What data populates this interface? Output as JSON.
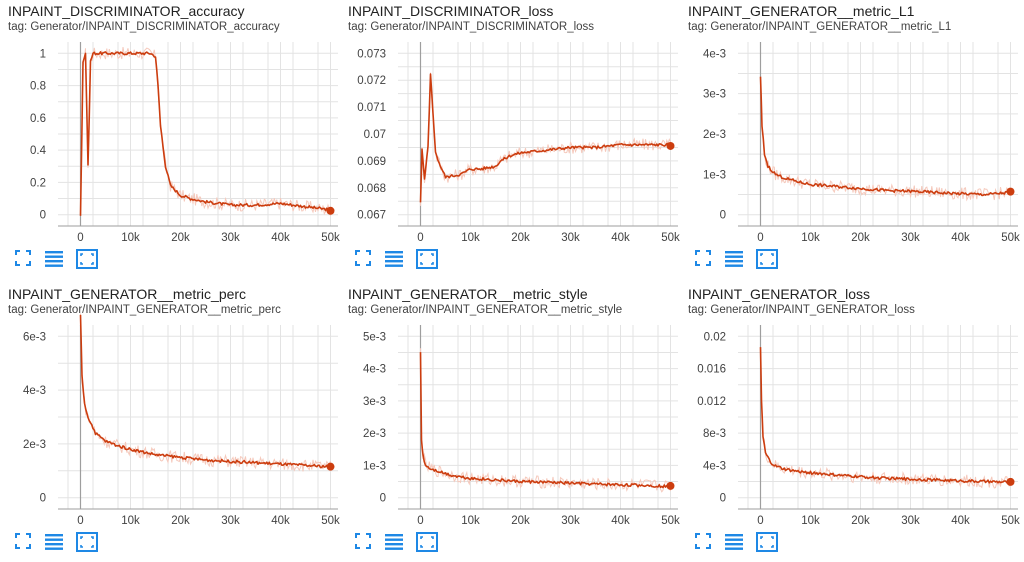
{
  "colors": {
    "line": "#cc3d0f",
    "raw": "#f5c9bc",
    "grid": "#e3e3e3",
    "axis": "#9e9e9e",
    "icon": "#1e88e5"
  },
  "cards": [
    {
      "title": "INPAINT_DISCRIMINATOR_accuracy",
      "tag": "tag: Generator/INPAINT_DISCRIMINATOR_accuracy"
    },
    {
      "title": "INPAINT_DISCRIMINATOR_loss",
      "tag": "tag: Generator/INPAINT_DISCRIMINATOR_loss"
    },
    {
      "title": "INPAINT_GENERATOR__metric_L1",
      "tag": "tag: Generator/INPAINT_GENERATOR__metric_L1"
    },
    {
      "title": "INPAINT_GENERATOR__metric_perc",
      "tag": "tag: Generator/INPAINT_GENERATOR__metric_perc"
    },
    {
      "title": "INPAINT_GENERATOR__metric_style",
      "tag": "tag: Generator/INPAINT_GENERATOR__metric_style"
    },
    {
      "title": "INPAINT_GENERATOR_loss",
      "tag": "tag: Generator/INPAINT_GENERATOR_loss"
    }
  ],
  "toolbar": {
    "icons": [
      "fit-to-data-icon",
      "toggle-log-scale-icon",
      "fit-domain-icon"
    ]
  },
  "chart_data": [
    {
      "type": "line",
      "title": "INPAINT_DISCRIMINATOR_accuracy",
      "x_ticks": [
        "0",
        "10k",
        "20k",
        "30k",
        "40k",
        "50k"
      ],
      "y_ticks": [
        "0",
        "0.2",
        "0.4",
        "0.6",
        "0.8",
        "1"
      ],
      "series": [
        {
          "x": [
            0,
            500,
            1000,
            1500,
            2000,
            2500,
            3000,
            4000,
            6000,
            8000,
            10000,
            12000,
            14000,
            15000,
            15500,
            16000,
            17000,
            18000,
            20000,
            22000,
            25000,
            30000,
            35000,
            40000,
            45000,
            50000
          ],
          "y": [
            0,
            0.95,
            1.0,
            0.3,
            0.95,
            1.0,
            1.0,
            1.0,
            1.0,
            1.0,
            1.0,
            1.0,
            1.0,
            0.98,
            0.8,
            0.55,
            0.3,
            0.18,
            0.12,
            0.1,
            0.08,
            0.06,
            0.06,
            0.07,
            0.05,
            0.03
          ]
        }
      ]
    },
    {
      "type": "line",
      "title": "INPAINT_DISCRIMINATOR_loss",
      "x_ticks": [
        "0",
        "10k",
        "20k",
        "30k",
        "40k",
        "50k"
      ],
      "y_ticks": [
        "0.067",
        "0.068",
        "0.069",
        "0.07",
        "0.071",
        "0.072",
        "0.073"
      ],
      "series": [
        {
          "x": [
            0,
            300,
            800,
            1500,
            2000,
            2500,
            3000,
            4000,
            5000,
            8000,
            10000,
            12000,
            15000,
            16000,
            18000,
            20000,
            25000,
            30000,
            35000,
            40000,
            45000,
            50000
          ],
          "y": [
            0.0675,
            0.0694,
            0.0683,
            0.0695,
            0.0722,
            0.0708,
            0.0693,
            0.0688,
            0.0684,
            0.0685,
            0.0687,
            0.0687,
            0.0688,
            0.069,
            0.0692,
            0.0693,
            0.0694,
            0.0695,
            0.0695,
            0.0696,
            0.0696,
            0.0696
          ]
        }
      ]
    },
    {
      "type": "line",
      "title": "INPAINT_GENERATOR__metric_L1",
      "x_ticks": [
        "0",
        "10k",
        "20k",
        "30k",
        "40k",
        "50k"
      ],
      "y_ticks": [
        "0",
        "1e-3",
        "2e-3",
        "3e-3",
        "4e-3"
      ],
      "series": [
        {
          "x": [
            0,
            300,
            800,
            1500,
            3000,
            5000,
            8000,
            10000,
            15000,
            20000,
            25000,
            30000,
            35000,
            40000,
            45000,
            50000
          ],
          "y": [
            0.0034,
            0.0022,
            0.0015,
            0.0012,
            0.001,
            0.0009,
            0.0008,
            0.00075,
            0.0007,
            0.00065,
            0.0006,
            0.00058,
            0.00055,
            0.00052,
            0.0005,
            0.00055
          ]
        }
      ]
    },
    {
      "type": "line",
      "title": "INPAINT_GENERATOR__metric_perc",
      "x_ticks": [
        "0",
        "10k",
        "20k",
        "30k",
        "40k",
        "50k"
      ],
      "y_ticks": [
        "0",
        "2e-3",
        "4e-3",
        "6e-3"
      ],
      "series": [
        {
          "x": [
            0,
            300,
            800,
            1500,
            3000,
            5000,
            8000,
            10000,
            15000,
            20000,
            25000,
            30000,
            35000,
            40000,
            45000,
            50000
          ],
          "y": [
            0.0068,
            0.0045,
            0.0035,
            0.003,
            0.0024,
            0.0021,
            0.0019,
            0.0018,
            0.0016,
            0.0015,
            0.0014,
            0.00135,
            0.0013,
            0.00125,
            0.0012,
            0.00115
          ]
        }
      ]
    },
    {
      "type": "line",
      "title": "INPAINT_GENERATOR__metric_style",
      "x_ticks": [
        "0",
        "10k",
        "20k",
        "30k",
        "40k",
        "50k"
      ],
      "y_ticks": [
        "0",
        "1e-3",
        "2e-3",
        "3e-3",
        "4e-3",
        "5e-3"
      ],
      "series": [
        {
          "x": [
            0,
            200,
            500,
            1000,
            2000,
            4000,
            6000,
            8000,
            10000,
            15000,
            20000,
            25000,
            30000,
            35000,
            40000,
            45000,
            50000
          ],
          "y": [
            0.0045,
            0.0018,
            0.0013,
            0.001,
            0.0009,
            0.0008,
            0.0007,
            0.00065,
            0.0006,
            0.00055,
            0.0005,
            0.00048,
            0.00045,
            0.00042,
            0.0004,
            0.00038,
            0.00035
          ]
        }
      ]
    },
    {
      "type": "line",
      "title": "INPAINT_GENERATOR_loss",
      "x_ticks": [
        "0",
        "10k",
        "20k",
        "30k",
        "40k",
        "50k"
      ],
      "y_ticks": [
        "0",
        "4e-3",
        "8e-3",
        "0.012",
        "0.016",
        "0.02"
      ],
      "series": [
        {
          "x": [
            0,
            200,
            500,
            1000,
            2000,
            3000,
            5000,
            8000,
            10000,
            15000,
            20000,
            25000,
            30000,
            35000,
            40000,
            45000,
            50000
          ],
          "y": [
            0.0185,
            0.012,
            0.0075,
            0.0055,
            0.0044,
            0.0039,
            0.0035,
            0.0032,
            0.0031,
            0.0028,
            0.0026,
            0.0024,
            0.0023,
            0.0022,
            0.0021,
            0.002,
            0.0019
          ]
        }
      ]
    }
  ]
}
